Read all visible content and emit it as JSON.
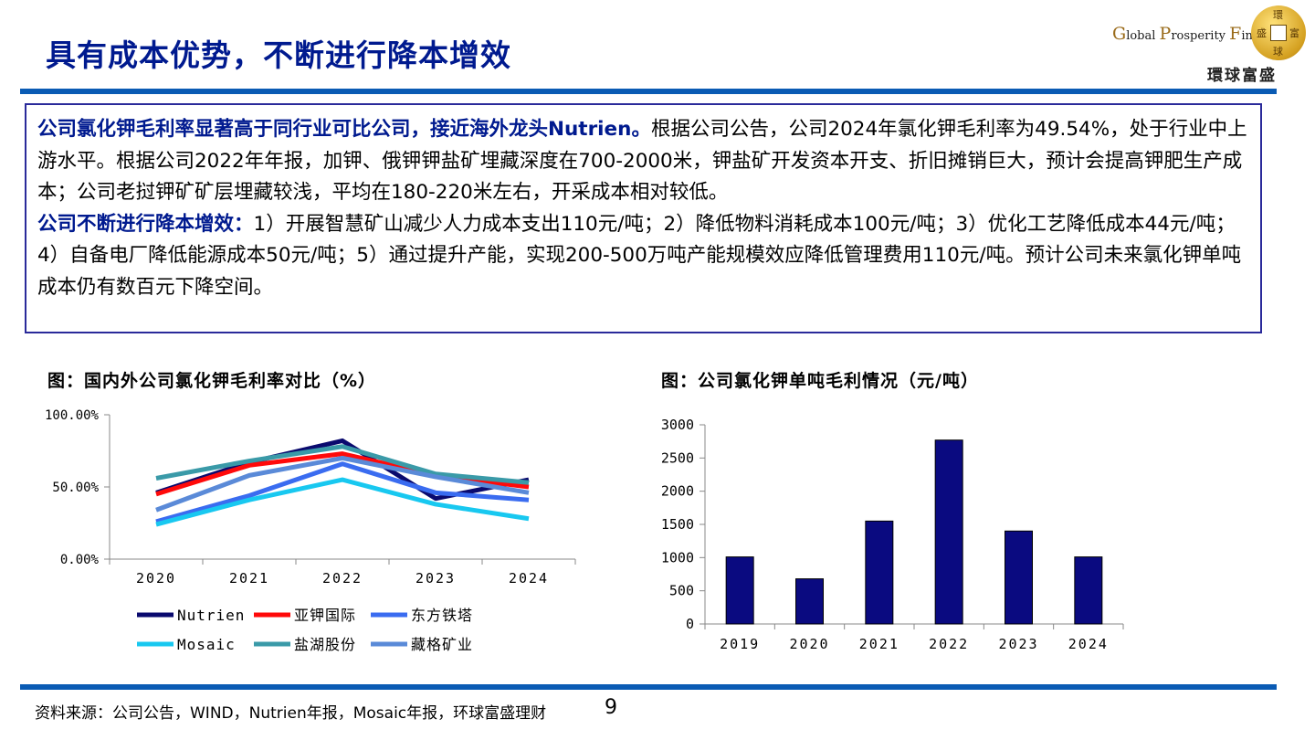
{
  "header": {
    "title": "具有成本优势，不断进行降本增效",
    "logo": {
      "en_parts": [
        {
          "cap": "G",
          "rest": "lobal "
        },
        {
          "cap": "P",
          "rest": "rosperity "
        },
        {
          "cap": "F",
          "rest": "inancial"
        }
      ],
      "cn": "環球富盛",
      "coin_chars": [
        "環",
        "富",
        "盛",
        "球"
      ]
    }
  },
  "summary": {
    "para1_bold": "公司氯化钾毛利率显著高于同行业可比公司，接近海外龙头Nutrien。",
    "para1_text": "根据公司公告，公司2024年氯化钾毛利率为49.54%，处于行业中上游水平。根据公司2022年年报，加钾、俄钾钾盐矿埋藏深度在700-2000米，钾盐矿开发资本开支、折旧摊销巨大，预计会提高钾肥生产成本；公司老挝钾矿矿层埋藏较浅，平均在180-220米左右，开采成本相对较低。",
    "para2_bold": "公司不断进行降本增效：",
    "para2_text": "1）开展智慧矿山减少人力成本支出110元/吨；2）降低物料消耗成本100元/吨；3）优化工艺降低成本44元/吨；4）自备电厂降低能源成本50元/吨；5）通过提升产能，实现200-500万吨产能规模效应降低管理费用110元/吨。预计公司未来氯化钾单吨成本仍有数百元下降空间。"
  },
  "chart_data": [
    {
      "type": "line",
      "title": "图：国内外公司氯化钾毛利率对比（%）",
      "x": [
        "2020",
        "2021",
        "2022",
        "2023",
        "2024"
      ],
      "ylim": [
        0,
        100
      ],
      "yticks": [
        "0.00%",
        "50.00%",
        "100.00%"
      ],
      "ytick_values": [
        0,
        50,
        100
      ],
      "grid": false,
      "legend_position": "bottom",
      "series": [
        {
          "name": "Nutrien",
          "color": "#0a0a6e",
          "values": [
            46,
            67,
            82,
            42,
            55
          ]
        },
        {
          "name": "亚钾国际",
          "color": "#ff0a0a",
          "values": [
            45,
            65,
            73,
            58,
            50
          ]
        },
        {
          "name": "东方铁塔",
          "color": "#3a6cf0",
          "values": [
            26,
            44,
            66,
            46,
            41
          ]
        },
        {
          "name": "Mosaic",
          "color": "#18c8f0",
          "values": [
            24,
            41,
            55,
            38,
            28
          ]
        },
        {
          "name": "盐湖股份",
          "color": "#3a9aa8",
          "values": [
            56,
            68,
            78,
            59,
            53
          ]
        },
        {
          "name": "藏格矿业",
          "color": "#5a8ad8",
          "values": [
            34,
            58,
            70,
            57,
            46
          ]
        }
      ]
    },
    {
      "type": "bar",
      "title": "图：公司氯化钾单吨毛利情况（元/吨）",
      "categories": [
        "2019",
        "2020",
        "2021",
        "2022",
        "2023",
        "2024"
      ],
      "values": [
        1010,
        680,
        1550,
        2770,
        1400,
        1010
      ],
      "ylim": [
        0,
        3000
      ],
      "yticks": [
        "0",
        "500",
        "1000",
        "1500",
        "2000",
        "2500",
        "3000"
      ],
      "ytick_values": [
        0,
        500,
        1000,
        1500,
        2000,
        2500,
        3000
      ],
      "bar_color": "#0a0a80",
      "grid": false
    }
  ],
  "footer": {
    "source": "资料来源：公司公告，WIND，Nutrien年报，Mosaic年报，环球富盛理财",
    "page": "9"
  }
}
